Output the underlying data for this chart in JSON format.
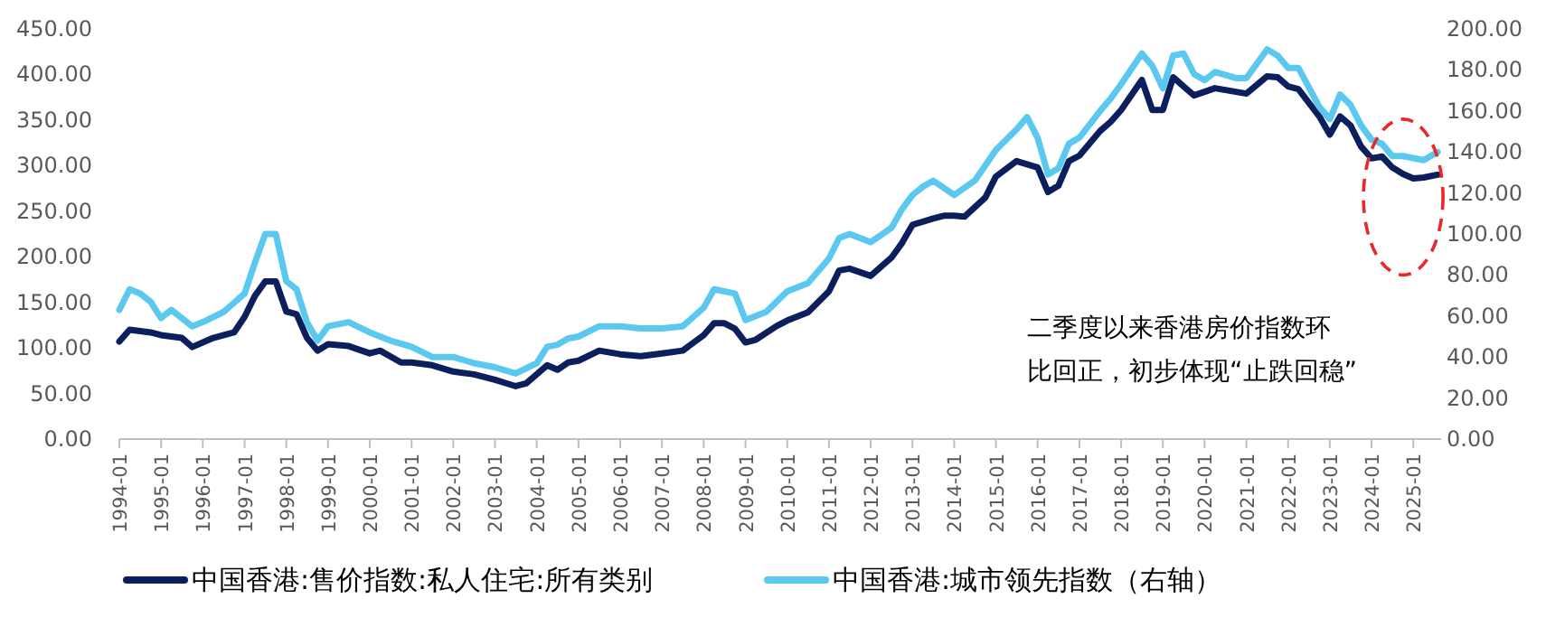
{
  "chart_data": {
    "type": "line",
    "xlim": [
      "1994-01",
      "2025-09"
    ],
    "xticks": [
      "1994-01",
      "1995-01",
      "1996-01",
      "1997-01",
      "1998-01",
      "1999-01",
      "2000-01",
      "2001-01",
      "2002-01",
      "2003-01",
      "2004-01",
      "2005-01",
      "2006-01",
      "2007-01",
      "2008-01",
      "2009-01",
      "2010-01",
      "2011-01",
      "2012-01",
      "2013-01",
      "2014-01",
      "2015-01",
      "2016-01",
      "2017-01",
      "2018-01",
      "2019-01",
      "2020-01",
      "2021-01",
      "2022-01",
      "2023-01",
      "2024-01",
      "2025-01"
    ],
    "ylim": [
      0,
      450
    ],
    "yticks": [
      {
        "value": 0,
        "label": "0.00"
      },
      {
        "value": 50,
        "label": "50.00"
      },
      {
        "value": 100,
        "label": "100.00"
      },
      {
        "value": 150,
        "label": "150.00"
      },
      {
        "value": 200,
        "label": "200.00"
      },
      {
        "value": 250,
        "label": "250.00"
      },
      {
        "value": 300,
        "label": "300.00"
      },
      {
        "value": 350,
        "label": "350.00"
      },
      {
        "value": 400,
        "label": "400.00"
      },
      {
        "value": 450,
        "label": "450.00"
      }
    ],
    "y2lim": [
      0,
      200
    ],
    "y2ticks": [
      {
        "value": 0,
        "label": "0.00"
      },
      {
        "value": 20,
        "label": "20.00"
      },
      {
        "value": 40,
        "label": "40.00"
      },
      {
        "value": 60,
        "label": "60.00"
      },
      {
        "value": 80,
        "label": "80.00"
      },
      {
        "value": 100,
        "label": "100.00"
      },
      {
        "value": 120,
        "label": "120.00"
      },
      {
        "value": 140,
        "label": "140.00"
      },
      {
        "value": 160,
        "label": "160.00"
      },
      {
        "value": 180,
        "label": "180.00"
      },
      {
        "value": 200,
        "label": "200.00"
      }
    ],
    "legend": "bottom",
    "grid": false,
    "marker": "none",
    "line_style": "solid",
    "annotations": [
      "二季度以来香港房价指数环",
      "比回正，初步体现“止跌回稳”"
    ],
    "series": [
      {
        "name": "中国香港:售价指数:私人住宅:所有类别",
        "color": "#0b1f5c",
        "x": [
          "1994-01",
          "1994-04",
          "1994-10",
          "1995-01",
          "1995-07",
          "1995-10",
          "1996-04",
          "1996-10",
          "1997-01",
          "1997-04",
          "1997-07",
          "1997-10",
          "1998-01",
          "1998-04",
          "1998-07",
          "1998-10",
          "1999-01",
          "1999-07",
          "2000-01",
          "2000-04",
          "2000-10",
          "2001-01",
          "2001-07",
          "2002-01",
          "2002-07",
          "2003-01",
          "2003-07",
          "2003-10",
          "2004-01",
          "2004-04",
          "2004-07",
          "2004-10",
          "2005-01",
          "2005-07",
          "2006-01",
          "2006-07",
          "2007-01",
          "2007-07",
          "2008-01",
          "2008-04",
          "2008-07",
          "2008-10",
          "2009-01",
          "2009-04",
          "2009-10",
          "2010-01",
          "2010-07",
          "2011-01",
          "2011-04",
          "2011-07",
          "2012-01",
          "2012-07",
          "2012-10",
          "2013-01",
          "2013-07",
          "2013-10",
          "2014-01",
          "2014-04",
          "2014-10",
          "2015-01",
          "2015-07",
          "2016-01",
          "2016-04",
          "2016-07",
          "2016-10",
          "2017-01",
          "2017-07",
          "2017-10",
          "2018-01",
          "2018-07",
          "2018-10",
          "2019-01",
          "2019-04",
          "2019-07",
          "2019-10",
          "2020-01",
          "2020-04",
          "2020-10",
          "2021-01",
          "2021-07",
          "2021-10",
          "2022-01",
          "2022-04",
          "2022-10",
          "2023-01",
          "2023-04",
          "2023-07",
          "2023-10",
          "2024-01",
          "2024-04",
          "2024-07",
          "2024-10",
          "2025-01",
          "2025-04",
          "2025-08"
        ],
        "values": [
          107,
          120,
          117,
          114,
          111,
          101,
          111,
          117,
          134,
          157,
          173,
          173,
          140,
          137,
          111,
          97,
          104,
          102,
          94,
          97,
          84,
          84,
          81,
          74,
          71,
          65,
          58,
          61,
          71,
          81,
          76,
          84,
          86,
          97,
          93,
          91,
          94,
          97,
          114,
          127,
          127,
          121,
          106,
          109,
          124,
          130,
          139,
          162,
          185,
          187,
          179,
          199,
          215,
          235,
          242,
          245,
          245,
          244,
          265,
          288,
          305,
          298,
          271,
          278,
          305,
          311,
          338,
          348,
          361,
          394,
          361,
          361,
          397,
          387,
          377,
          381,
          385,
          381,
          379,
          398,
          397,
          387,
          384,
          354,
          334,
          354,
          344,
          321,
          308,
          310,
          298,
          291,
          286,
          287,
          290
        ]
      },
      {
        "name": "中国香港:城市领先指数（右轴）",
        "color": "#5bc8f0",
        "axis": "y2",
        "x": [
          "1994-01",
          "1994-04",
          "1994-07",
          "1994-10",
          "1995-01",
          "1995-04",
          "1995-10",
          "1996-01",
          "1996-07",
          "1997-01",
          "1997-04",
          "1997-07",
          "1997-10",
          "1998-01",
          "1998-04",
          "1998-07",
          "1998-10",
          "1999-01",
          "1999-07",
          "2000-01",
          "2000-07",
          "2001-01",
          "2001-07",
          "2002-01",
          "2002-07",
          "2003-01",
          "2003-07",
          "2004-01",
          "2004-04",
          "2004-07",
          "2004-10",
          "2005-01",
          "2005-07",
          "2006-01",
          "2006-07",
          "2007-01",
          "2007-07",
          "2008-01",
          "2008-04",
          "2008-10",
          "2009-01",
          "2009-07",
          "2010-01",
          "2010-07",
          "2011-01",
          "2011-04",
          "2011-07",
          "2012-01",
          "2012-07",
          "2012-10",
          "2013-01",
          "2013-04",
          "2013-07",
          "2014-01",
          "2014-07",
          "2015-01",
          "2015-07",
          "2015-10",
          "2016-01",
          "2016-04",
          "2016-07",
          "2016-10",
          "2017-01",
          "2017-07",
          "2017-10",
          "2018-01",
          "2018-07",
          "2018-10",
          "2019-01",
          "2019-04",
          "2019-07",
          "2019-10",
          "2020-01",
          "2020-04",
          "2020-10",
          "2021-01",
          "2021-07",
          "2021-10",
          "2022-01",
          "2022-04",
          "2022-10",
          "2023-01",
          "2023-04",
          "2023-07",
          "2023-10",
          "2024-01",
          "2024-04",
          "2024-07",
          "2024-10",
          "2025-01",
          "2025-04",
          "2025-08"
        ],
        "values": [
          63,
          73,
          71,
          67,
          59,
          63,
          55,
          57,
          62,
          71,
          86,
          100,
          100,
          77,
          73,
          57,
          48,
          55,
          57,
          52,
          48,
          45,
          40,
          40,
          37,
          35,
          32,
          37,
          45,
          46,
          49,
          50,
          55,
          55,
          54,
          54,
          55,
          64,
          73,
          71,
          58,
          62,
          72,
          76,
          88,
          98,
          100,
          96,
          103,
          112,
          119,
          123,
          126,
          119,
          126,
          141,
          151,
          157,
          147,
          129,
          132,
          144,
          147,
          160,
          166,
          173,
          188,
          182,
          171,
          187,
          188,
          178,
          175,
          179,
          176,
          176,
          190,
          187,
          181,
          181,
          162,
          156,
          168,
          163,
          153,
          146,
          144,
          138,
          138,
          137,
          136,
          140
        ]
      }
    ]
  }
}
